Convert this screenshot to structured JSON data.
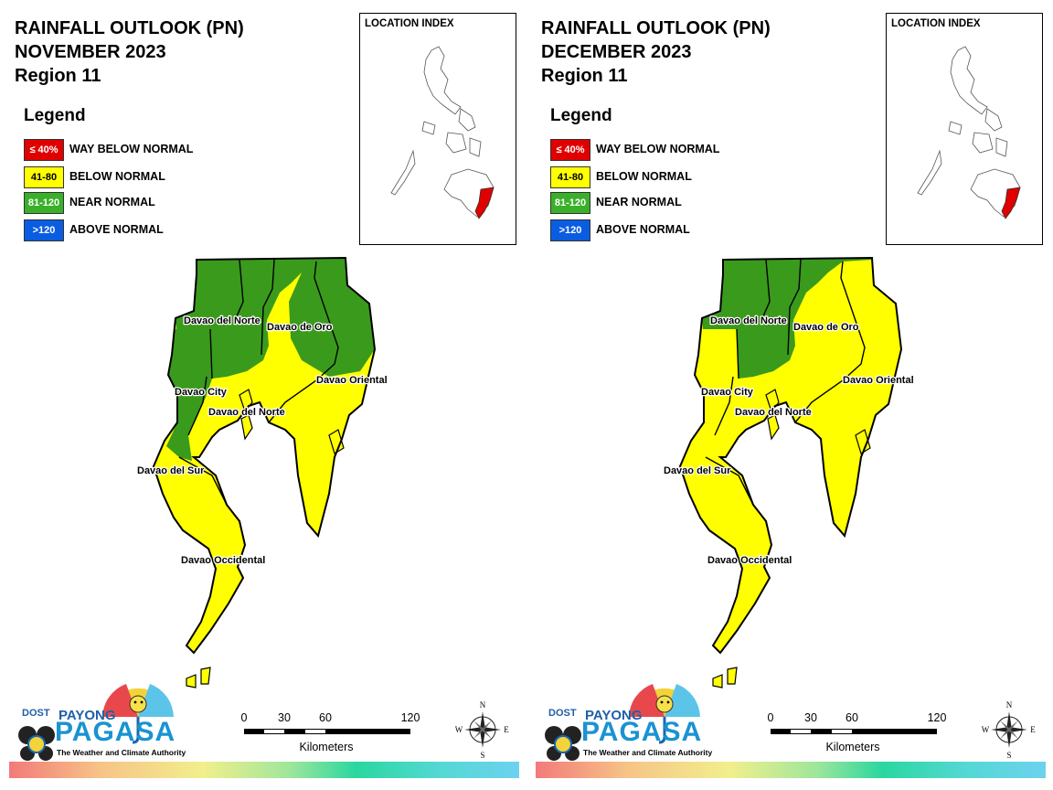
{
  "panels": [
    {
      "title_line1": "RAINFALL OUTLOOK (PN)",
      "title_line2": "NOVEMBER 2023",
      "title_line3": "Region 11",
      "zone_colors": {
        "north": "#3a9a1c",
        "center_west": "#3a9a1c",
        "east": "#3a9a1c"
      }
    },
    {
      "title_line1": "RAINFALL OUTLOOK (PN)",
      "title_line2": "DECEMBER 2023",
      "title_line3": "Region 11",
      "zone_colors": {
        "north": "#3a9a1c",
        "center_west": "#ffff00",
        "east": "#ffff00"
      }
    }
  ],
  "legend": {
    "title": "Legend",
    "items": [
      {
        "range": "≤ 40%",
        "label": "WAY BELOW NORMAL",
        "color": "#e00000",
        "text_color": "#ffffff"
      },
      {
        "range": "41-80",
        "label": "BELOW NORMAL",
        "color": "#ffff00",
        "text_color": "#000000"
      },
      {
        "range": "81-120",
        "label": "NEAR NORMAL",
        "color": "#3ab02a",
        "text_color": "#ffffff"
      },
      {
        "range": ">120",
        "label": "ABOVE NORMAL",
        "color": "#0a5de0",
        "text_color": "#ffffff"
      }
    ]
  },
  "inset": {
    "title": "LOCATION INDEX",
    "highlight_color": "#e00000"
  },
  "province_labels": {
    "davao_del_norte": "Davao del Norte",
    "davao_de_oro": "Davao de Oro",
    "davao_oriental": "Davao Oriental",
    "davao_city": "Davao City",
    "davao_del_norte_samal": "Davao del Norte",
    "davao_del_sur": "Davao del Sur",
    "davao_occidental": "Davao Occidental"
  },
  "colors": {
    "near_normal": "#3a9a1c",
    "below_normal": "#ffff00"
  },
  "scale_bar": {
    "ticks": [
      "0",
      "30",
      "60",
      "120"
    ],
    "unit": "Kilometers"
  },
  "compass": {
    "n": "N",
    "s": "S",
    "e": "E",
    "w": "W"
  },
  "logo": {
    "dost": "DOST",
    "payong": "PAYONG",
    "pagasa": "PAGASA",
    "tagline": "The Weather and Climate Authority"
  }
}
